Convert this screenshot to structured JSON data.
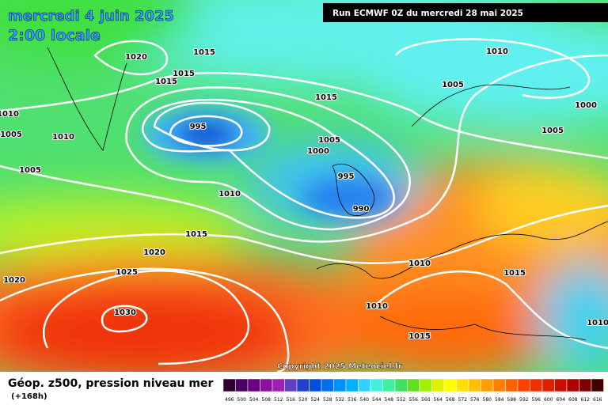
{
  "header": {
    "date": "mercredi 4 juin 2025",
    "time": "2:00 locale",
    "run": "Run ECMWF 0Z du mercredi 28 mai 2025"
  },
  "isobars": [
    1020,
    1015,
    1015,
    1015,
    1010,
    1005,
    1010,
    1005,
    995,
    1015,
    1005,
    1000,
    995,
    990,
    1010,
    1015,
    1020,
    1025,
    1030,
    1020,
    1010,
    1005,
    1000,
    1005,
    1010,
    1015,
    1010,
    1015,
    1010
  ],
  "footer": {
    "copyright": "Copyright 2025 Meteociel.fr",
    "title": "Géop. z500, pression niveau mer",
    "lead": "(+168h)"
  },
  "legend": {
    "labels": [
      496,
      500,
      504,
      508,
      512,
      516,
      520,
      524,
      528,
      532,
      536,
      540,
      544,
      548,
      552,
      556,
      560,
      564,
      568,
      572,
      576,
      580,
      584,
      588,
      592,
      596,
      600,
      604,
      608,
      612,
      616
    ]
  }
}
